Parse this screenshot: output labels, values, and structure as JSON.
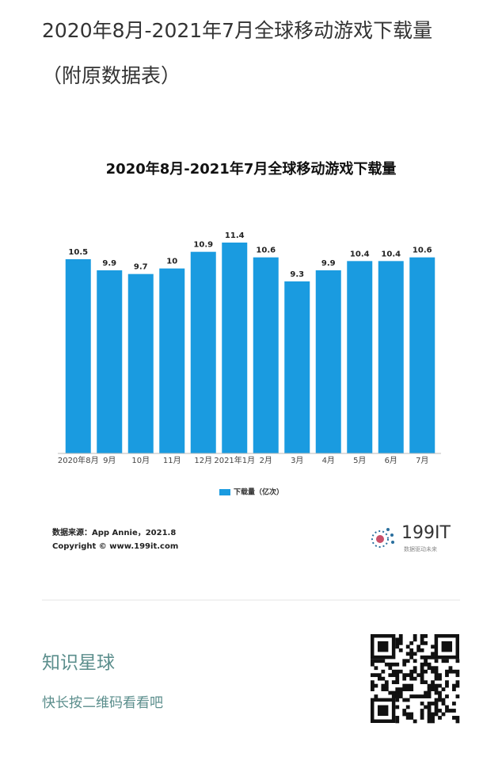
{
  "article": {
    "title": "2020年8月-2021年7月全球移动游戏下载量（附原数据表）"
  },
  "chart_data": {
    "type": "bar",
    "title": "2020年8月-2021年7月全球移动游戏下载量",
    "categories": [
      "2020年8月",
      "9月",
      "10月",
      "11月",
      "12月",
      "2021年1月",
      "2月",
      "3月",
      "4月",
      "5月",
      "6月",
      "7月"
    ],
    "series": [
      {
        "name": "下载量（亿次）",
        "color": "#1a9be0",
        "values": [
          10.5,
          9.9,
          9.7,
          10,
          10.9,
          11.4,
          10.6,
          9.3,
          9.9,
          10.4,
          10.4,
          10.6
        ]
      }
    ],
    "legend": "bottom",
    "source": "数据来源：App Annie，2021.8",
    "copyright": "Copyright © www.199it.com"
  },
  "logo": {
    "text": "199IT",
    "tagline": "数据驱动未来"
  },
  "footer": {
    "title": "知识星球",
    "subtitle": "快长按二维码看看吧"
  }
}
